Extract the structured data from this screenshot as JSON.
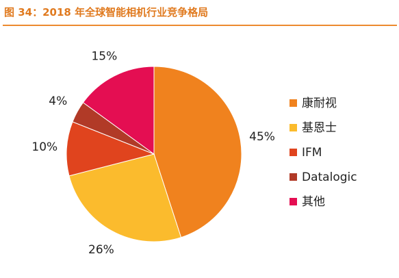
{
  "chart_data": {
    "type": "pie",
    "title": "图 34：2018 年全球智能相机行业竞争格局",
    "slices": [
      {
        "label": "康耐视",
        "value": 45,
        "display": "45%",
        "color": "#f0821e"
      },
      {
        "label": "基恩士",
        "value": 26,
        "display": "26%",
        "color": "#fbbb2d"
      },
      {
        "label": "IFM",
        "value": 10,
        "display": "10%",
        "color": "#e0441e"
      },
      {
        "label": "Datalogic",
        "value": 4,
        "display": "4%",
        "color": "#b13a27"
      },
      {
        "label": "其他",
        "value": 15,
        "display": "15%",
        "color": "#e40e52"
      }
    ],
    "legend_position": "right"
  }
}
